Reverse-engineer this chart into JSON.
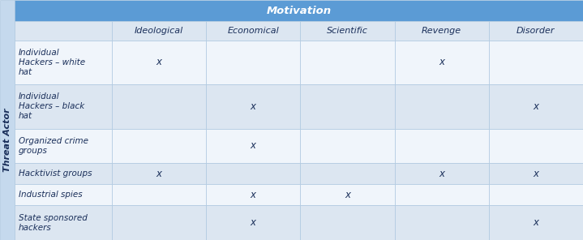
{
  "title": "Motivation",
  "row_header_label": "Threat Actor",
  "col_headers": [
    "Ideological",
    "Economical",
    "Scientific",
    "Revenge",
    "Disorder"
  ],
  "row_labels": [
    "Individual\nHackers – white\nhat",
    "Individual\nHackers – black\nhat",
    "Organized crime\ngroups",
    "Hacktivist groups",
    "Industrial spies",
    "State sponsored\nhackers"
  ],
  "marks": [
    [
      1,
      0,
      0,
      1,
      0
    ],
    [
      0,
      1,
      0,
      0,
      1
    ],
    [
      0,
      1,
      0,
      0,
      0
    ],
    [
      1,
      0,
      0,
      1,
      1
    ],
    [
      0,
      1,
      1,
      0,
      0
    ],
    [
      0,
      1,
      0,
      0,
      1
    ]
  ],
  "header_bg": "#5b9bd5",
  "header_text_color": "#ffffff",
  "row_bg_alt": "#dce6f1",
  "row_bg_white": "#f0f5fb",
  "left_strip_bg": "#c5d9ed",
  "border_color": "#aec8e0",
  "text_color": "#1a2f5a",
  "mark_color": "#1a2f5a",
  "fig_bg": "#ffffff",
  "title_fontsize": 9.5,
  "col_header_fontsize": 8,
  "row_label_fontsize": 7.5,
  "mark_fontsize": 8.5
}
